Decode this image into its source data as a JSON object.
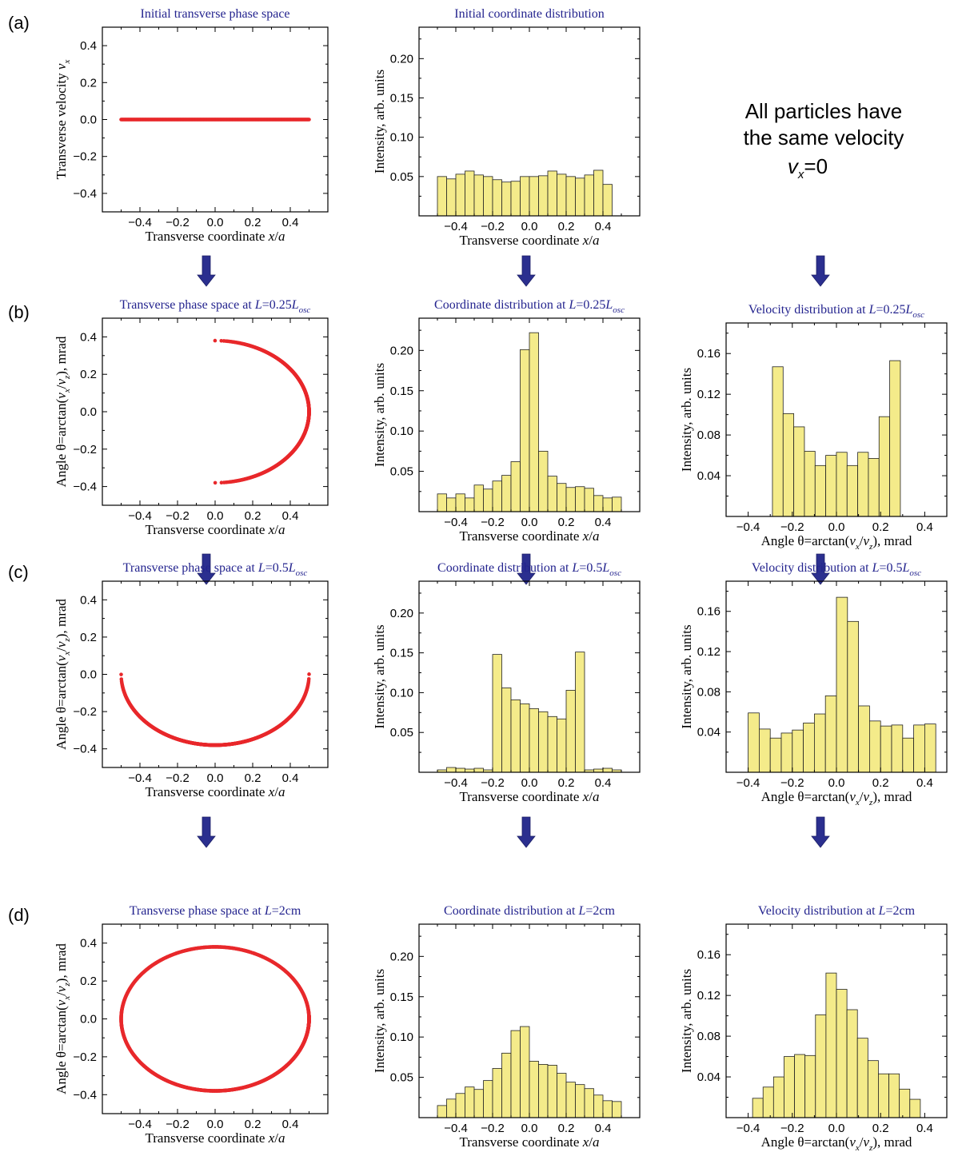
{
  "row_labels": [
    "(a)",
    "(b)",
    "(c)",
    "(d)"
  ],
  "note": {
    "line1": "All particles have",
    "line2": "the same velocity",
    "v": "v",
    "sub": "x",
    "rest": "=0"
  },
  "colors": {
    "phase_points": "#e8282b",
    "bars_fill": "#f4eb8a",
    "bars_stroke": "#222222",
    "arrow": "#2b2f8f",
    "title": "#23238e"
  },
  "chart_data": [
    {
      "id": "a1",
      "type": "scatter",
      "title": [
        {
          "t": "Initial transverse phase space",
          "s": "n"
        }
      ],
      "xlabel": [
        {
          "t": "Transverse coordinate ",
          "s": "n"
        },
        {
          "t": "x",
          "s": "i"
        },
        {
          "t": "/",
          "s": "n"
        },
        {
          "t": "a",
          "s": "i"
        }
      ],
      "ylabel": [
        {
          "t": "Transverse velocity ",
          "s": "n"
        },
        {
          "t": "v",
          "s": "i"
        },
        {
          "t": "x",
          "s": "sub"
        }
      ],
      "xlim": [
        -0.6,
        0.6
      ],
      "ylim": [
        -0.5,
        0.5
      ],
      "xticks": [
        -0.4,
        -0.2,
        0.0,
        0.2,
        0.4
      ],
      "yticks": [
        -0.4,
        -0.2,
        0.0,
        0.2,
        0.4
      ],
      "phase": {
        "model": "line",
        "x_range": [
          -0.5,
          0.5
        ],
        "y": 0.0
      }
    },
    {
      "id": "a2",
      "type": "bar",
      "title": [
        {
          "t": "Initial coordinate distribution",
          "s": "n"
        }
      ],
      "xlabel": [
        {
          "t": "Transverse coordinate ",
          "s": "n"
        },
        {
          "t": "x",
          "s": "i"
        },
        {
          "t": "/",
          "s": "n"
        },
        {
          "t": "a",
          "s": "i"
        }
      ],
      "ylabel": [
        {
          "t": "Intensity, arb. units",
          "s": "n"
        }
      ],
      "xlim": [
        -0.6,
        0.6
      ],
      "ylim": [
        0,
        0.24
      ],
      "xticks": [
        -0.4,
        -0.2,
        0.0,
        0.2,
        0.4
      ],
      "yticks": [
        0.05,
        0.1,
        0.15,
        0.2
      ],
      "bin_start": -0.5,
      "bin_width": 0.05,
      "values": [
        0.05,
        0.047,
        0.053,
        0.057,
        0.052,
        0.05,
        0.046,
        0.043,
        0.044,
        0.05,
        0.05,
        0.051,
        0.057,
        0.053,
        0.05,
        0.048,
        0.052,
        0.058,
        0.04
      ]
    },
    {
      "id": "b1",
      "type": "scatter",
      "title": [
        {
          "t": "Transverse phase space at ",
          "s": "n"
        },
        {
          "t": "L",
          "s": "i"
        },
        {
          "t": "=0.25",
          "s": "n"
        },
        {
          "t": "L",
          "s": "i"
        },
        {
          "t": "osc",
          "s": "sub"
        }
      ],
      "xlabel": [
        {
          "t": "Transverse coordinate ",
          "s": "n"
        },
        {
          "t": "x",
          "s": "i"
        },
        {
          "t": "/",
          "s": "n"
        },
        {
          "t": "a",
          "s": "i"
        }
      ],
      "ylabel": [
        {
          "t": "Angle θ=arctan(",
          "s": "n"
        },
        {
          "t": "v",
          "s": "i"
        },
        {
          "t": "x",
          "s": "sub"
        },
        {
          "t": "/",
          "s": "n"
        },
        {
          "t": "v",
          "s": "i"
        },
        {
          "t": "z",
          "s": "sub"
        },
        {
          "t": "), mrad",
          "s": "n"
        }
      ],
      "xlim": [
        -0.6,
        0.6
      ],
      "ylim": [
        -0.5,
        0.5
      ],
      "xticks": [
        -0.4,
        -0.2,
        0.0,
        0.2,
        0.4
      ],
      "yticks": [
        -0.4,
        -0.2,
        0.0,
        0.2,
        0.4
      ],
      "phase": {
        "model": "oscillation",
        "amplitude": 0.5,
        "theta_max": 0.38,
        "k": 3.14,
        "length": 0.5
      }
    },
    {
      "id": "b2",
      "type": "bar",
      "title": [
        {
          "t": "Coordinate distribution at ",
          "s": "n"
        },
        {
          "t": "L",
          "s": "i"
        },
        {
          "t": "=0.25",
          "s": "n"
        },
        {
          "t": "L",
          "s": "i"
        },
        {
          "t": "osc",
          "s": "sub"
        }
      ],
      "xlabel": [
        {
          "t": "Transverse coordinate ",
          "s": "n"
        },
        {
          "t": "x",
          "s": "i"
        },
        {
          "t": "/",
          "s": "n"
        },
        {
          "t": "a",
          "s": "i"
        }
      ],
      "ylabel": [
        {
          "t": "Intensity, arb. units",
          "s": "n"
        }
      ],
      "xlim": [
        -0.6,
        0.6
      ],
      "ylim": [
        0,
        0.24
      ],
      "xticks": [
        -0.4,
        -0.2,
        0.0,
        0.2,
        0.4
      ],
      "yticks": [
        0.05,
        0.1,
        0.15,
        0.2
      ],
      "bin_start": -0.5,
      "bin_width": 0.05,
      "values": [
        0.022,
        0.017,
        0.022,
        0.017,
        0.033,
        0.028,
        0.038,
        0.045,
        0.062,
        0.201,
        0.222,
        0.075,
        0.044,
        0.035,
        0.03,
        0.031,
        0.029,
        0.02,
        0.017,
        0.018
      ]
    },
    {
      "id": "b3",
      "type": "bar",
      "title": [
        {
          "t": "Velocity distribution at ",
          "s": "n"
        },
        {
          "t": "L",
          "s": "i"
        },
        {
          "t": "=0.25",
          "s": "n"
        },
        {
          "t": "L",
          "s": "i"
        },
        {
          "t": "osc",
          "s": "sub"
        }
      ],
      "xlabel": [
        {
          "t": "Angle θ=arctan(",
          "s": "n"
        },
        {
          "t": "v",
          "s": "i"
        },
        {
          "t": "x",
          "s": "sub"
        },
        {
          "t": "/",
          "s": "n"
        },
        {
          "t": "v",
          "s": "i"
        },
        {
          "t": "z",
          "s": "sub"
        },
        {
          "t": "), mrad",
          "s": "n"
        }
      ],
      "ylabel": [
        {
          "t": "Intensity, arb. units",
          "s": "n"
        }
      ],
      "xlim": [
        -0.5,
        0.5
      ],
      "ylim": [
        0,
        0.19
      ],
      "xticks": [
        -0.4,
        -0.2,
        0.0,
        0.2,
        0.4
      ],
      "yticks": [
        0.04,
        0.08,
        0.12,
        0.16
      ],
      "bin_start": -0.29,
      "bin_width": 0.0483,
      "values": [
        0.147,
        0.101,
        0.088,
        0.064,
        0.05,
        0.06,
        0.063,
        0.05,
        0.063,
        0.057,
        0.098,
        0.153
      ]
    },
    {
      "id": "c1",
      "type": "scatter",
      "title": [
        {
          "t": "Transverse phase space at ",
          "s": "n"
        },
        {
          "t": "L",
          "s": "i"
        },
        {
          "t": "=0.5",
          "s": "n"
        },
        {
          "t": "L",
          "s": "i"
        },
        {
          "t": "osc",
          "s": "sub"
        }
      ],
      "xlabel": [
        {
          "t": "Transverse coordinate ",
          "s": "n"
        },
        {
          "t": "x",
          "s": "i"
        },
        {
          "t": "/",
          "s": "n"
        },
        {
          "t": "a",
          "s": "i"
        }
      ],
      "ylabel": [
        {
          "t": "Angle θ=arctan(",
          "s": "n"
        },
        {
          "t": "v",
          "s": "i"
        },
        {
          "t": "x",
          "s": "sub"
        },
        {
          "t": "/",
          "s": "n"
        },
        {
          "t": "v",
          "s": "i"
        },
        {
          "t": "z",
          "s": "sub"
        },
        {
          "t": "), mrad",
          "s": "n"
        }
      ],
      "xlim": [
        -0.6,
        0.6
      ],
      "ylim": [
        -0.5,
        0.5
      ],
      "xticks": [
        -0.4,
        -0.2,
        0.0,
        0.2,
        0.4
      ],
      "yticks": [
        -0.4,
        -0.2,
        0.0,
        0.2,
        0.4
      ],
      "phase": {
        "model": "oscillation",
        "amplitude": 0.5,
        "theta_max": 0.38,
        "k": 3.14,
        "length": 1.0
      }
    },
    {
      "id": "c2",
      "type": "bar",
      "title": [
        {
          "t": "Coordinate distribution at ",
          "s": "n"
        },
        {
          "t": "L",
          "s": "i"
        },
        {
          "t": "=0.5",
          "s": "n"
        },
        {
          "t": "L",
          "s": "i"
        },
        {
          "t": "osc",
          "s": "sub"
        }
      ],
      "xlabel": [
        {
          "t": "Transverse coordinate ",
          "s": "n"
        },
        {
          "t": "x",
          "s": "i"
        },
        {
          "t": "/",
          "s": "n"
        },
        {
          "t": "a",
          "s": "i"
        }
      ],
      "ylabel": [
        {
          "t": "Intensity, arb. units",
          "s": "n"
        }
      ],
      "xlim": [
        -0.6,
        0.6
      ],
      "ylim": [
        0,
        0.24
      ],
      "xticks": [
        -0.4,
        -0.2,
        0.0,
        0.2,
        0.4
      ],
      "yticks": [
        0.05,
        0.1,
        0.15,
        0.2
      ],
      "bin_start": -0.5,
      "bin_width": 0.05,
      "values": [
        0.003,
        0.006,
        0.005,
        0.004,
        0.005,
        0.003,
        0.148,
        0.106,
        0.091,
        0.086,
        0.08,
        0.076,
        0.07,
        0.067,
        0.103,
        0.151,
        0.003,
        0.004,
        0.005,
        0.003
      ]
    },
    {
      "id": "c3",
      "type": "bar",
      "title": [
        {
          "t": "Velocity distribution at ",
          "s": "n"
        },
        {
          "t": "L",
          "s": "i"
        },
        {
          "t": "=0.5",
          "s": "n"
        },
        {
          "t": "L",
          "s": "i"
        },
        {
          "t": "osc",
          "s": "sub"
        }
      ],
      "xlabel": [
        {
          "t": "Angle θ=arctan(",
          "s": "n"
        },
        {
          "t": "v",
          "s": "i"
        },
        {
          "t": "x",
          "s": "sub"
        },
        {
          "t": "/",
          "s": "n"
        },
        {
          "t": "v",
          "s": "i"
        },
        {
          "t": "z",
          "s": "sub"
        },
        {
          "t": "), mrad",
          "s": "n"
        }
      ],
      "ylabel": [
        {
          "t": "Intensity, arb. units",
          "s": "n"
        }
      ],
      "xlim": [
        -0.5,
        0.5
      ],
      "ylim": [
        0,
        0.19
      ],
      "xticks": [
        -0.4,
        -0.2,
        0.0,
        0.2,
        0.4
      ],
      "yticks": [
        0.04,
        0.08,
        0.12,
        0.16
      ],
      "bin_start": -0.4,
      "bin_width": 0.05,
      "values": [
        0.059,
        0.043,
        0.034,
        0.039,
        0.042,
        0.049,
        0.058,
        0.076,
        0.174,
        0.15,
        0.066,
        0.051,
        0.046,
        0.047,
        0.034,
        0.047,
        0.048
      ]
    },
    {
      "id": "d1",
      "type": "scatter",
      "title": [
        {
          "t": "Transverse phase space at ",
          "s": "n"
        },
        {
          "t": "L",
          "s": "i"
        },
        {
          "t": "=2cm",
          "s": "n"
        }
      ],
      "xlabel": [
        {
          "t": "Transverse coordinate ",
          "s": "n"
        },
        {
          "t": "x",
          "s": "i"
        },
        {
          "t": "/",
          "s": "n"
        },
        {
          "t": "a",
          "s": "i"
        }
      ],
      "ylabel": [
        {
          "t": "Angle θ=arctan(",
          "s": "n"
        },
        {
          "t": "v",
          "s": "i"
        },
        {
          "t": "x",
          "s": "sub"
        },
        {
          "t": "/",
          "s": "n"
        },
        {
          "t": "v",
          "s": "i"
        },
        {
          "t": "z",
          "s": "sub"
        },
        {
          "t": "), mrad",
          "s": "n"
        }
      ],
      "xlim": [
        -0.6,
        0.6
      ],
      "ylim": [
        -0.5,
        0.5
      ],
      "xticks": [
        -0.4,
        -0.2,
        0.0,
        0.2,
        0.4
      ],
      "yticks": [
        -0.4,
        -0.2,
        0.0,
        0.2,
        0.4
      ],
      "phase": {
        "model": "spiral",
        "amplitude": 0.5,
        "theta_max": 0.38,
        "k": 3.14,
        "length": 4.5,
        "dispersion": 0.55
      }
    },
    {
      "id": "d2",
      "type": "bar",
      "title": [
        {
          "t": "Coordinate distribution at ",
          "s": "n"
        },
        {
          "t": "L",
          "s": "i"
        },
        {
          "t": "=2cm",
          "s": "n"
        }
      ],
      "xlabel": [
        {
          "t": "Transverse coordinate ",
          "s": "n"
        },
        {
          "t": "x",
          "s": "i"
        },
        {
          "t": "/",
          "s": "n"
        },
        {
          "t": "a",
          "s": "i"
        }
      ],
      "ylabel": [
        {
          "t": "Intensity, arb. units",
          "s": "n"
        }
      ],
      "xlim": [
        -0.6,
        0.6
      ],
      "ylim": [
        0,
        0.24
      ],
      "xticks": [
        -0.4,
        -0.2,
        0.0,
        0.2,
        0.4
      ],
      "yticks": [
        0.05,
        0.1,
        0.15,
        0.2
      ],
      "bin_start": -0.5,
      "bin_width": 0.05,
      "values": [
        0.015,
        0.023,
        0.03,
        0.038,
        0.035,
        0.046,
        0.061,
        0.08,
        0.108,
        0.113,
        0.07,
        0.066,
        0.065,
        0.055,
        0.044,
        0.041,
        0.036,
        0.028,
        0.021,
        0.02
      ]
    },
    {
      "id": "d3",
      "type": "bar",
      "title": [
        {
          "t": "Velocity distribution at ",
          "s": "n"
        },
        {
          "t": "L",
          "s": "i"
        },
        {
          "t": "=2cm",
          "s": "n"
        }
      ],
      "xlabel": [
        {
          "t": "Angle θ=arctan(",
          "s": "n"
        },
        {
          "t": "v",
          "s": "i"
        },
        {
          "t": "x",
          "s": "sub"
        },
        {
          "t": "/",
          "s": "n"
        },
        {
          "t": "v",
          "s": "i"
        },
        {
          "t": "z",
          "s": "sub"
        },
        {
          "t": "), mrad",
          "s": "n"
        }
      ],
      "ylabel": [
        {
          "t": "Intensity, arb. units",
          "s": "n"
        }
      ],
      "xlim": [
        -0.5,
        0.5
      ],
      "ylim": [
        0,
        0.19
      ],
      "xticks": [
        -0.4,
        -0.2,
        0.0,
        0.2,
        0.4
      ],
      "yticks": [
        0.04,
        0.08,
        0.12,
        0.16
      ],
      "bin_start": -0.38,
      "bin_width": 0.0475,
      "values": [
        0.019,
        0.03,
        0.04,
        0.06,
        0.062,
        0.061,
        0.101,
        0.142,
        0.126,
        0.106,
        0.078,
        0.056,
        0.043,
        0.043,
        0.028,
        0.018
      ]
    }
  ]
}
